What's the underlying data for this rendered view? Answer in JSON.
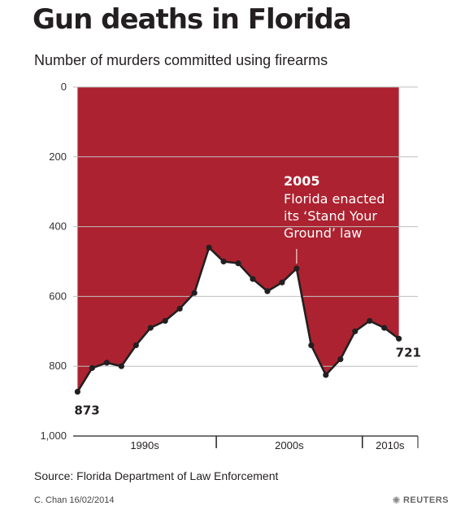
{
  "title": "Gun deaths in Florida",
  "footer": {
    "source": "Source: Florida Department of Law Enforcement",
    "credit": "C. Chan  16/02/2014",
    "logo_text": "REUTERS"
  },
  "colors": {
    "fill": "#ad2230",
    "line": "#231f20",
    "grid": "#bfbfbf"
  },
  "chart_data": {
    "type": "area",
    "title": "Gun deaths in Florida",
    "subtitle": "Number of murders committed using firearms",
    "y_inverted": true,
    "ylim": [
      0,
      1000
    ],
    "yticks": [
      0,
      200,
      400,
      600,
      800,
      1000
    ],
    "ytick_labels": [
      "0",
      "200",
      "400",
      "600",
      "800",
      "1,000"
    ],
    "xlim": [
      1989.7,
      2013.3
    ],
    "x": [
      1990,
      1991,
      1992,
      1993,
      1994,
      1995,
      1996,
      1997,
      1998,
      1999,
      2000,
      2001,
      2002,
      2003,
      2004,
      2005,
      2006,
      2007,
      2008,
      2009,
      2010,
      2011,
      2012,
      2013
    ],
    "values": [
      873,
      805,
      790,
      800,
      740,
      690,
      670,
      635,
      590,
      460,
      500,
      505,
      550,
      585,
      560,
      520,
      740,
      825,
      780,
      700,
      670,
      690,
      721,
      null
    ],
    "series_note": "last year has no point",
    "x_groups": [
      {
        "label": "1990s",
        "from": 1989.5,
        "to": 1999.5
      },
      {
        "label": "2000s",
        "from": 1999.5,
        "to": 2009.5
      },
      {
        "label": "2010s",
        "from": 2009.5,
        "to": 2013.5
      }
    ],
    "point_labels": [
      {
        "x": 1990,
        "text": "873",
        "position": "below"
      },
      {
        "x": 2012,
        "text": "721",
        "position": "below-right"
      }
    ],
    "annotation": {
      "x": 2005,
      "year": "2005",
      "lines": [
        "Florida enacted",
        "its ‘Stand Your",
        "Ground’ law"
      ]
    }
  }
}
